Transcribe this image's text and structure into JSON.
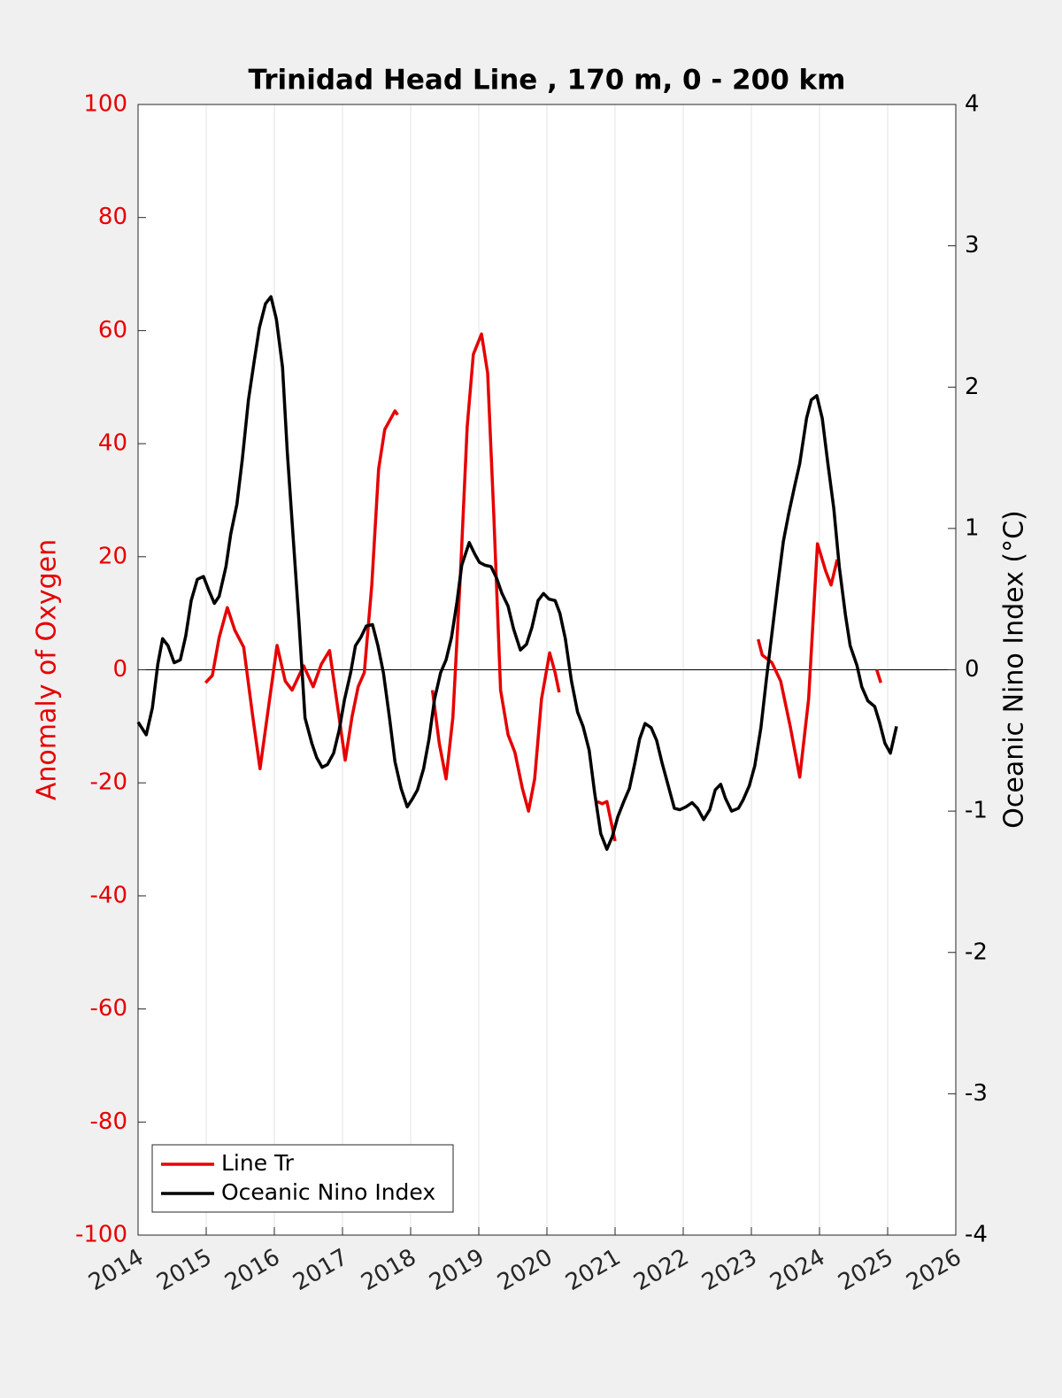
{
  "chart_data": {
    "type": "line",
    "title": "Trinidad Head Line , 170 m, 0 - 200 km",
    "ylabel": "Anomaly of Oxygen",
    "y2label": "Oceanic Nino Index (°C)",
    "xlim": [
      2014,
      2026
    ],
    "xticks": [
      2014,
      2015,
      2016,
      2017,
      2018,
      2019,
      2020,
      2021,
      2022,
      2023,
      2024,
      2025,
      2026
    ],
    "ylim": [
      -100,
      100
    ],
    "yticks": [
      -100,
      -80,
      -60,
      -40,
      -20,
      0,
      20,
      40,
      60,
      80,
      100
    ],
    "y2lim": [
      -4,
      4
    ],
    "y2ticks": [
      -4,
      -3,
      -2,
      -1,
      0,
      1,
      2,
      3,
      4
    ],
    "grid": true,
    "legend": "lower left",
    "series": [
      {
        "name": "Line Tr",
        "color": "#e60000",
        "axis": "y",
        "x": [
          2014.99,
          2015.09,
          2015.19,
          2015.31,
          2015.42,
          2015.55,
          2015.68,
          2015.79,
          2015.91,
          2016.04,
          2016.16,
          2016.26,
          2016.43,
          2016.57,
          2016.69,
          2016.81,
          2016.91,
          2017.04,
          2017.14,
          2017.23,
          2017.32,
          2017.43,
          2017.53,
          2017.62,
          2017.77,
          2017.81,
          2018.0,
          2018.32,
          2018.42,
          2018.52,
          2018.62,
          2018.73,
          2018.83,
          2018.92,
          2019.04,
          2019.13,
          2019.22,
          2019.32,
          2019.43,
          2019.53,
          2019.64,
          2019.73,
          2019.82,
          2019.92,
          2020.04,
          2020.12,
          2020.18,
          2020.4,
          2020.74,
          2020.81,
          2020.88,
          2021.0,
          2022.0,
          2023.1,
          2023.16,
          2023.3,
          2023.43,
          2023.57,
          2023.71,
          2023.84,
          2023.97,
          2024.09,
          2024.17,
          2024.26,
          2024.5,
          2024.84,
          2024.9
        ],
        "values": [
          -2.3,
          -1,
          5.7,
          11,
          7,
          4,
          -8,
          -17.5,
          -7,
          4.3,
          -2,
          -3.6,
          0.7,
          -3,
          1,
          3.4,
          -5,
          -16,
          -8.3,
          -3,
          -0.5,
          15,
          35.5,
          42.5,
          45.8,
          45.1,
          null,
          -3.6,
          -13,
          -19.3,
          -8.4,
          16.7,
          43,
          55.8,
          59.4,
          52.5,
          27.5,
          -3.6,
          -11.5,
          -14.6,
          -21,
          -25,
          -19.3,
          -5.2,
          3,
          -0.5,
          -4,
          null,
          -23.3,
          -23.7,
          -23.3,
          -30.3,
          null,
          5.4,
          2.6,
          1.3,
          -2,
          -10,
          -19,
          -5.2,
          22.3,
          17.5,
          15,
          19.5,
          null,
          0,
          -2.3
        ]
      },
      {
        "name": "Oceanic Nino Index",
        "color": "#000000",
        "axis": "y2",
        "x": [
          2014.0,
          2014.12,
          2014.21,
          2014.29,
          2014.36,
          2014.44,
          2014.53,
          2014.62,
          2014.7,
          2014.78,
          2014.87,
          2014.96,
          2015.04,
          2015.12,
          2015.19,
          2015.29,
          2015.36,
          2015.45,
          2015.53,
          2015.62,
          2015.7,
          2015.78,
          2015.87,
          2015.95,
          2016.03,
          2016.12,
          2016.19,
          2016.27,
          2016.36,
          2016.45,
          2016.55,
          2016.62,
          2016.7,
          2016.78,
          2016.87,
          2016.95,
          2017.03,
          2017.12,
          2017.19,
          2017.27,
          2017.35,
          2017.44,
          2017.52,
          2017.6,
          2017.69,
          2017.77,
          2017.86,
          2017.95,
          2018.03,
          2018.1,
          2018.19,
          2018.27,
          2018.35,
          2018.44,
          2018.52,
          2018.6,
          2018.68,
          2018.75,
          2018.86,
          2018.94,
          2019.01,
          2019.09,
          2019.18,
          2019.26,
          2019.34,
          2019.43,
          2019.51,
          2019.61,
          2019.7,
          2019.78,
          2019.87,
          2019.95,
          2020.03,
          2020.12,
          2020.19,
          2020.27,
          2020.36,
          2020.45,
          2020.53,
          2020.62,
          2020.7,
          2020.79,
          2020.88,
          2020.96,
          2021.04,
          2021.13,
          2021.21,
          2021.29,
          2021.36,
          2021.44,
          2021.53,
          2021.61,
          2021.69,
          2021.78,
          2021.87,
          2021.95,
          2022.04,
          2022.13,
          2022.21,
          2022.3,
          2022.39,
          2022.47,
          2022.55,
          2022.62,
          2022.71,
          2022.81,
          2022.88,
          2022.97,
          2023.05,
          2023.14,
          2023.22,
          2023.3,
          2023.39,
          2023.47,
          2023.55,
          2023.64,
          2023.71,
          2023.81,
          2023.88,
          2023.96,
          2024.04,
          2024.12,
          2024.21,
          2024.29,
          2024.38,
          2024.45,
          2024.55,
          2024.62,
          2024.71,
          2024.81,
          2024.88,
          2024.96,
          2025.04,
          2025.13
        ],
        "values": [
          -0.37,
          -0.46,
          -0.27,
          0.04,
          0.22,
          0.17,
          0.05,
          0.07,
          0.24,
          0.49,
          0.64,
          0.66,
          0.56,
          0.47,
          0.52,
          0.73,
          0.96,
          1.17,
          1.49,
          1.91,
          2.17,
          2.42,
          2.59,
          2.64,
          2.48,
          2.14,
          1.54,
          0.98,
          0.35,
          -0.34,
          -0.52,
          -0.62,
          -0.69,
          -0.67,
          -0.59,
          -0.43,
          -0.21,
          -0.02,
          0.17,
          0.23,
          0.31,
          0.32,
          0.17,
          -0.02,
          -0.34,
          -0.65,
          -0.84,
          -0.97,
          -0.91,
          -0.85,
          -0.7,
          -0.49,
          -0.21,
          -0.02,
          0.07,
          0.23,
          0.48,
          0.74,
          0.9,
          0.82,
          0.76,
          0.74,
          0.73,
          0.65,
          0.54,
          0.45,
          0.29,
          0.14,
          0.18,
          0.3,
          0.49,
          0.54,
          0.5,
          0.49,
          0.4,
          0.22,
          -0.08,
          -0.3,
          -0.4,
          -0.57,
          -0.87,
          -1.16,
          -1.27,
          -1.18,
          -1.04,
          -0.93,
          -0.84,
          -0.66,
          -0.49,
          -0.38,
          -0.41,
          -0.5,
          -0.66,
          -0.82,
          -0.98,
          -0.99,
          -0.97,
          -0.94,
          -0.98,
          -1.06,
          -0.99,
          -0.85,
          -0.81,
          -0.91,
          -1.0,
          -0.98,
          -0.92,
          -0.82,
          -0.68,
          -0.41,
          -0.07,
          0.25,
          0.61,
          0.91,
          1.11,
          1.31,
          1.46,
          1.78,
          1.91,
          1.94,
          1.78,
          1.47,
          1.14,
          0.73,
          0.39,
          0.17,
          0.03,
          -0.12,
          -0.22,
          -0.26,
          -0.37,
          -0.52,
          -0.59,
          -0.4
        ]
      }
    ]
  }
}
